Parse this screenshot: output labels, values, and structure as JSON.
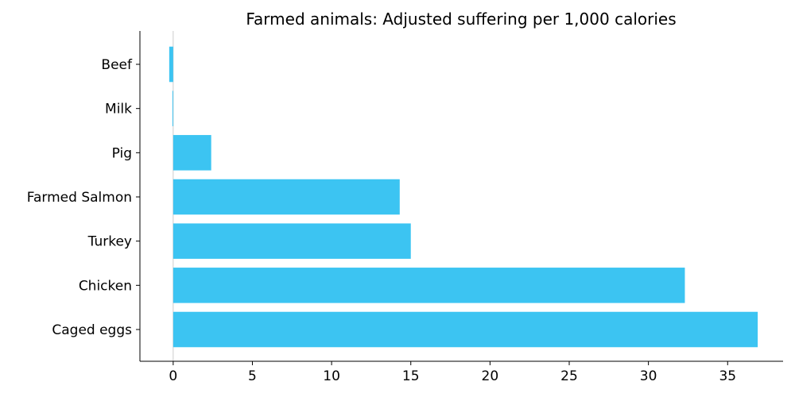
{
  "chart_data": {
    "type": "bar",
    "orientation": "horizontal",
    "title": "Farmed animals: Adjusted suffering per 1,000 calories",
    "xlabel": "",
    "ylabel": "",
    "categories": [
      "Caged eggs",
      "Chicken",
      "Turkey",
      "Farmed Salmon",
      "Pig",
      "Milk",
      "Beef"
    ],
    "values": [
      36.9,
      32.3,
      15.0,
      14.3,
      2.4,
      -0.05,
      -0.25
    ],
    "xlim": [
      -2.1,
      38.5
    ],
    "xticks": [
      0,
      5,
      10,
      15,
      20,
      25,
      30,
      35
    ],
    "bar_color": "#3cc4f2",
    "grid": false,
    "legend": "none"
  }
}
